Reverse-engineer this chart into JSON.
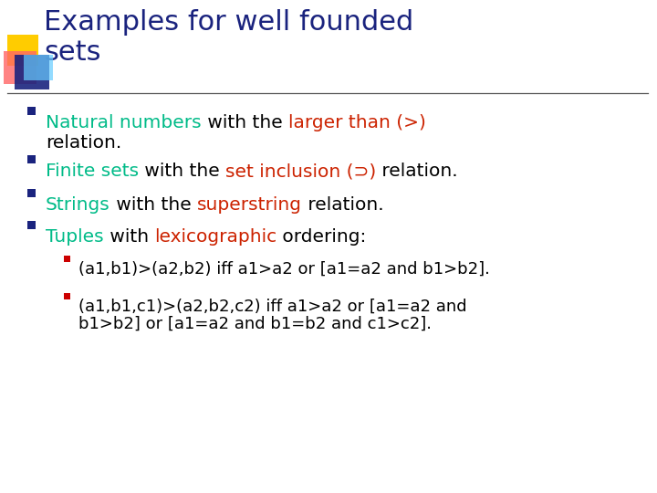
{
  "title_line1": "Examples for well founded",
  "title_line2": "sets",
  "title_color": "#1a237e",
  "bg_color": "#ffffff",
  "separator_color": "#555555",
  "bullet_square_color": "#1a237e",
  "small_bullet_color": "#cc0000",
  "decoration_colors": [
    "#ffcc00",
    "#ff6666",
    "#1a237e",
    "#66ccff"
  ],
  "items": [
    {
      "parts": [
        {
          "text": "Natural numbers",
          "color": "#00bb88"
        },
        {
          "text": " with the ",
          "color": "#000000"
        },
        {
          "text": "larger than (>)",
          "color": "#cc2200"
        },
        {
          "text": "\nrelation.",
          "color": "#000000"
        }
      ]
    },
    {
      "parts": [
        {
          "text": "Finite sets",
          "color": "#00bb88"
        },
        {
          "text": " with the ",
          "color": "#000000"
        },
        {
          "text": "set inclusion (⊃)",
          "color": "#cc2200"
        },
        {
          "text": " relation.",
          "color": "#000000"
        }
      ]
    },
    {
      "parts": [
        {
          "text": "Strings",
          "color": "#00bb88"
        },
        {
          "text": " with the ",
          "color": "#000000"
        },
        {
          "text": "superstring",
          "color": "#cc2200"
        },
        {
          "text": " relation.",
          "color": "#000000"
        }
      ]
    },
    {
      "parts": [
        {
          "text": "Tuples",
          "color": "#00bb88"
        },
        {
          "text": " with ",
          "color": "#000000"
        },
        {
          "text": "lexicographic",
          "color": "#cc2200"
        },
        {
          "text": " ordering:",
          "color": "#000000"
        }
      ]
    }
  ],
  "sub_items": [
    [
      "(a1,b1)>(a2,b2) iff a1>a2 or [a1=a2 and b1>b2]."
    ],
    [
      "(a1,b1,c1)>(a2,b2,c2) iff a1>a2 or [a1=a2 and",
      "b1>b2] or [a1=a2 and b1=b2 and c1>c2]."
    ]
  ]
}
